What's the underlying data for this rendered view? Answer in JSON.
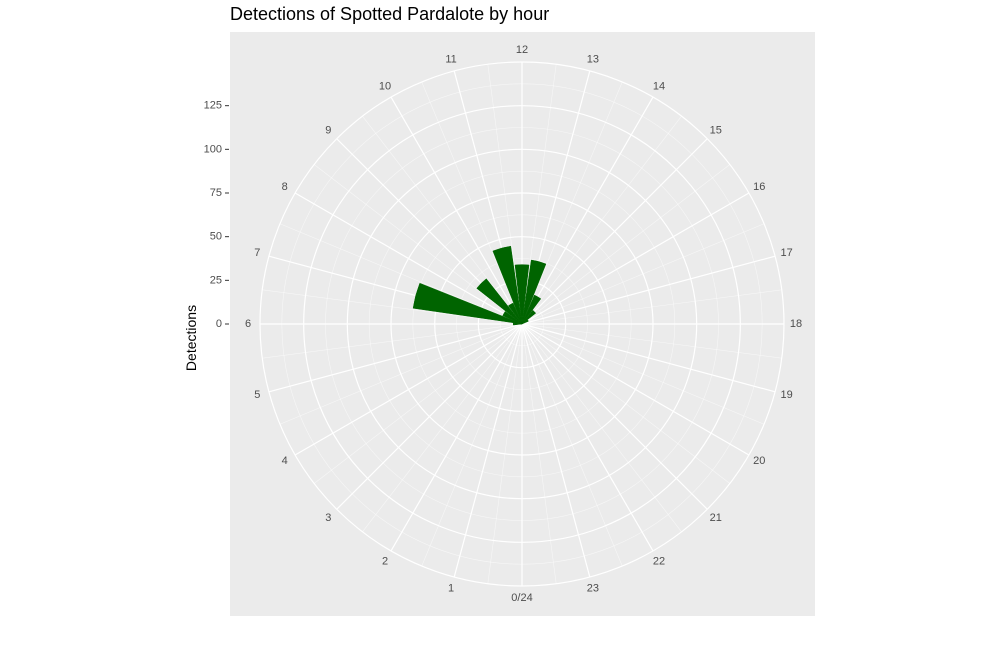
{
  "chart_data": {
    "type": "bar",
    "coord": "polar",
    "title": "Detections of Spotted Pardalote by hour",
    "xlabel": "",
    "ylabel": "Detections",
    "theta_labels": [
      "0/24",
      "1",
      "2",
      "3",
      "4",
      "5",
      "6",
      "7",
      "8",
      "9",
      "10",
      "11",
      "12",
      "13",
      "14",
      "15",
      "16",
      "17",
      "18",
      "19",
      "20",
      "21",
      "22",
      "23"
    ],
    "r_ticks": [
      0,
      25,
      50,
      75,
      100,
      125
    ],
    "rlim": [
      0,
      150
    ],
    "grid": true,
    "x": [
      6,
      7,
      8,
      9,
      10,
      11,
      12,
      13,
      14,
      15,
      16,
      17,
      18
    ],
    "values": [
      5,
      63,
      12,
      33,
      13,
      45,
      34,
      37,
      18,
      10,
      4,
      0,
      0
    ],
    "colors": {
      "bar_fill": "#006400",
      "panel_bg": "#ebebeb",
      "grid": "#ffffff",
      "tick_text": "#4d4d4d",
      "tick_mark": "#333333"
    }
  }
}
